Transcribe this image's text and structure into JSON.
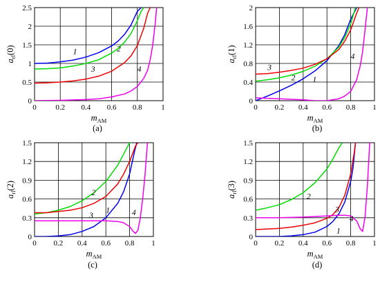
{
  "figure": {
    "colors": {
      "1": "#0000ee",
      "2": "#00dd00",
      "3": "#ee0000",
      "4": "#ee00ee",
      "grid": "#000000"
    }
  },
  "chart_data": [
    {
      "type": "line",
      "panel_label": "(a)",
      "ylabel_main": "a",
      "ylabel_sub": "rl",
      "ylabel_arg": "(0)",
      "xlabel_main": "m",
      "xlabel_sub": "AM",
      "xlim": [
        0,
        1
      ],
      "ylim": [
        0,
        2.5
      ],
      "xticks": [
        0,
        0.2,
        0.4,
        0.6,
        0.8,
        1
      ],
      "xtick_labels": [
        "0",
        "0.2",
        "0.4",
        "0.6",
        "0.8",
        "1"
      ],
      "yticks": [
        0,
        0.5,
        1,
        1.5,
        2,
        2.5
      ],
      "ytick_labels": [
        "0",
        "0.5",
        "1",
        "1.5",
        "2",
        "2.5"
      ],
      "grid": true,
      "series": [
        {
          "label": "1",
          "color": "#0000ee",
          "x": [
            0,
            0.1,
            0.2,
            0.3,
            0.4,
            0.5,
            0.6,
            0.65,
            0.7,
            0.75,
            0.8,
            0.83
          ],
          "y": [
            1.0,
            1.01,
            1.04,
            1.09,
            1.17,
            1.29,
            1.47,
            1.6,
            1.78,
            2.03,
            2.4,
            2.5
          ],
          "ann": {
            "x": 0.3,
            "y": 1.25
          }
        },
        {
          "label": "2",
          "color": "#00dd00",
          "x": [
            0,
            0.1,
            0.2,
            0.3,
            0.4,
            0.5,
            0.6,
            0.65,
            0.7,
            0.75,
            0.8,
            0.83,
            0.85
          ],
          "y": [
            0.85,
            0.86,
            0.88,
            0.93,
            1.0,
            1.1,
            1.28,
            1.4,
            1.57,
            1.8,
            2.15,
            2.4,
            2.5
          ],
          "ann": {
            "x": 0.64,
            "y": 1.32
          }
        },
        {
          "label": "3",
          "color": "#ee0000",
          "x": [
            0,
            0.1,
            0.2,
            0.3,
            0.4,
            0.5,
            0.6,
            0.7,
            0.75,
            0.8,
            0.85,
            0.88,
            0.9
          ],
          "y": [
            0.47,
            0.48,
            0.5,
            0.53,
            0.58,
            0.66,
            0.79,
            1.02,
            1.2,
            1.48,
            1.95,
            2.35,
            2.5
          ],
          "ann": {
            "x": 0.44,
            "y": 0.78
          }
        },
        {
          "label": "4",
          "color": "#ee00ee",
          "x": [
            0,
            0.2,
            0.4,
            0.5,
            0.6,
            0.7,
            0.75,
            0.8,
            0.85,
            0.88,
            0.9,
            0.92,
            0.94,
            0.95
          ],
          "y": [
            0.0,
            0.01,
            0.03,
            0.05,
            0.1,
            0.18,
            0.26,
            0.38,
            0.6,
            0.82,
            1.1,
            1.5,
            2.1,
            2.5
          ],
          "ann": {
            "x": 0.8,
            "y": 0.78
          }
        }
      ]
    },
    {
      "type": "line",
      "panel_label": "(b)",
      "ylabel_main": "a",
      "ylabel_sub": "rl",
      "ylabel_arg": "(1)",
      "xlabel_main": "m",
      "xlabel_sub": "AM",
      "xlim": [
        0,
        1
      ],
      "ylim": [
        0,
        2
      ],
      "xticks": [
        0,
        0.2,
        0.4,
        0.6,
        0.8,
        1
      ],
      "xtick_labels": [
        "0",
        "0.2",
        "0.4",
        "0.6",
        "0.8",
        "1"
      ],
      "yticks": [
        0,
        0.4,
        0.8,
        1.2,
        1.6,
        2
      ],
      "ytick_labels": [
        "0",
        "0.4",
        "0.8",
        "1.2",
        "1.6",
        "2"
      ],
      "grid": true,
      "series": [
        {
          "label": "1",
          "color": "#0000ee",
          "x": [
            0,
            0.1,
            0.2,
            0.3,
            0.4,
            0.5,
            0.6,
            0.7,
            0.75,
            0.8,
            0.85
          ],
          "y": [
            0.0,
            0.1,
            0.21,
            0.33,
            0.47,
            0.64,
            0.86,
            1.18,
            1.42,
            1.75,
            2.0
          ],
          "ann": {
            "x": 0.48,
            "y": 0.4
          }
        },
        {
          "label": "2",
          "color": "#00dd00",
          "x": [
            0,
            0.1,
            0.2,
            0.3,
            0.4,
            0.5,
            0.6,
            0.7,
            0.75,
            0.8,
            0.84
          ],
          "y": [
            0.42,
            0.45,
            0.49,
            0.55,
            0.63,
            0.74,
            0.9,
            1.15,
            1.36,
            1.65,
            2.0
          ],
          "ann": {
            "x": 0.3,
            "y": 0.44
          }
        },
        {
          "label": "3",
          "color": "#ee0000",
          "x": [
            0,
            0.1,
            0.2,
            0.3,
            0.4,
            0.5,
            0.6,
            0.7,
            0.75,
            0.8,
            0.85,
            0.87
          ],
          "y": [
            0.57,
            0.58,
            0.61,
            0.65,
            0.7,
            0.78,
            0.9,
            1.1,
            1.28,
            1.52,
            1.88,
            2.0
          ],
          "ann": {
            "x": 0.1,
            "y": 0.66
          }
        },
        {
          "label": "4",
          "color": "#ee00ee",
          "x": [
            0,
            0.1,
            0.2,
            0.3,
            0.4,
            0.5,
            0.6,
            0.7,
            0.75,
            0.8,
            0.85,
            0.88,
            0.9,
            0.92,
            0.94
          ],
          "y": [
            0.06,
            0.05,
            0.04,
            0.03,
            0.02,
            0.0,
            0.0,
            0.04,
            0.1,
            0.2,
            0.45,
            0.75,
            1.05,
            1.5,
            2.0
          ],
          "ann": {
            "x": 0.8,
            "y": 0.9
          }
        }
      ]
    },
    {
      "type": "line",
      "panel_label": "(c)",
      "ylabel_main": "a",
      "ylabel_sub": "rl",
      "ylabel_arg": "(2)",
      "xlabel_main": "m",
      "xlabel_sub": "AM",
      "xlim": [
        0,
        1
      ],
      "ylim": [
        0,
        1.5
      ],
      "xticks": [
        0,
        0.2,
        0.4,
        0.6,
        0.8,
        1
      ],
      "xtick_labels": [
        "0",
        "0.2",
        "0.4",
        "0.6",
        "0.8",
        "1"
      ],
      "yticks": [
        0,
        0.3,
        0.6,
        0.9,
        1.2,
        1.5
      ],
      "ytick_labels": [
        "0",
        "0.3",
        "0.6",
        "0.9",
        "1.2",
        "1.5"
      ],
      "grid": true,
      "series": [
        {
          "label": "1",
          "color": "#0000ee",
          "x": [
            0,
            0.1,
            0.2,
            0.3,
            0.4,
            0.5,
            0.6,
            0.7,
            0.75,
            0.8,
            0.84,
            0.86
          ],
          "y": [
            0.0,
            0.0,
            0.01,
            0.03,
            0.08,
            0.16,
            0.3,
            0.53,
            0.72,
            1.0,
            1.35,
            1.5
          ],
          "ann": {
            "x": 0.6,
            "y": 0.38
          }
        },
        {
          "label": "2",
          "color": "#00dd00",
          "x": [
            0,
            0.1,
            0.2,
            0.3,
            0.4,
            0.5,
            0.6,
            0.7,
            0.75,
            0.8,
            0.81
          ],
          "y": [
            0.36,
            0.38,
            0.42,
            0.48,
            0.57,
            0.7,
            0.88,
            1.14,
            1.32,
            1.5,
            1.5
          ],
          "ann": {
            "x": 0.48,
            "y": 0.66
          }
        },
        {
          "label": "3",
          "color": "#ee0000",
          "x": [
            0,
            0.1,
            0.2,
            0.3,
            0.4,
            0.5,
            0.6,
            0.7,
            0.75,
            0.8,
            0.85,
            0.87
          ],
          "y": [
            0.38,
            0.38,
            0.4,
            0.42,
            0.46,
            0.53,
            0.64,
            0.84,
            1.0,
            1.2,
            1.45,
            1.5
          ],
          "ann": {
            "x": 0.46,
            "y": 0.3
          }
        },
        {
          "label": "4",
          "color": "#ee00ee",
          "x": [
            0,
            0.2,
            0.4,
            0.5,
            0.6,
            0.7,
            0.75,
            0.8,
            0.83,
            0.85,
            0.87,
            0.89,
            0.91,
            0.93,
            0.95
          ],
          "y": [
            0.25,
            0.25,
            0.25,
            0.25,
            0.25,
            0.24,
            0.22,
            0.16,
            0.08,
            0.05,
            0.1,
            0.3,
            0.6,
            1.0,
            1.5
          ],
          "ann": {
            "x": 0.82,
            "y": 0.34
          }
        }
      ]
    },
    {
      "type": "line",
      "panel_label": "(d)",
      "ylabel_main": "a",
      "ylabel_sub": "rl",
      "ylabel_arg": "(3)",
      "xlabel_main": "m",
      "xlabel_sub": "AM",
      "xlim": [
        0,
        1
      ],
      "ylim": [
        0,
        1.5
      ],
      "xticks": [
        0,
        0.2,
        0.4,
        0.6,
        0.8,
        1
      ],
      "xtick_labels": [
        "0",
        "0.2",
        "0.4",
        "0.6",
        "0.8",
        "1"
      ],
      "yticks": [
        0,
        0.3,
        0.6,
        0.9,
        1.2,
        1.5
      ],
      "ytick_labels": [
        "0",
        "0.3",
        "0.6",
        "0.9",
        "1.2",
        "1.5"
      ],
      "grid": true,
      "series": [
        {
          "label": "1",
          "color": "#0000ee",
          "x": [
            0,
            0.2,
            0.3,
            0.4,
            0.5,
            0.6,
            0.65,
            0.7,
            0.75,
            0.8,
            0.82,
            0.84
          ],
          "y": [
            0.0,
            0.0,
            0.01,
            0.03,
            0.07,
            0.16,
            0.24,
            0.36,
            0.55,
            0.88,
            1.1,
            1.5
          ],
          "ann": {
            "x": 0.68,
            "y": 0.05
          }
        },
        {
          "label": "2",
          "color": "#00dd00",
          "x": [
            0,
            0.1,
            0.2,
            0.3,
            0.4,
            0.5,
            0.6,
            0.65,
            0.7,
            0.73
          ],
          "y": [
            0.42,
            0.46,
            0.51,
            0.59,
            0.7,
            0.86,
            1.08,
            1.24,
            1.42,
            1.5
          ],
          "ann": {
            "x": 0.43,
            "y": 0.6
          }
        },
        {
          "label": "3",
          "color": "#ee0000",
          "x": [
            0,
            0.1,
            0.2,
            0.3,
            0.4,
            0.5,
            0.6,
            0.65,
            0.7,
            0.75,
            0.8,
            0.83,
            0.84
          ],
          "y": [
            0.11,
            0.12,
            0.13,
            0.15,
            0.18,
            0.22,
            0.29,
            0.35,
            0.46,
            0.66,
            1.0,
            1.35,
            1.5
          ],
          "ann": {
            "x": 0.67,
            "y": 0.39
          }
        },
        {
          "label": "4",
          "color": "#ee00ee",
          "x": [
            0,
            0.2,
            0.4,
            0.5,
            0.6,
            0.7,
            0.75,
            0.8,
            0.85,
            0.88,
            0.9,
            0.92,
            0.94,
            0.96
          ],
          "y": [
            0.3,
            0.3,
            0.31,
            0.32,
            0.33,
            0.34,
            0.34,
            0.33,
            0.25,
            0.12,
            0.08,
            0.3,
            0.8,
            1.5
          ],
          "ann": {
            "x": 0.79,
            "y": 0.24
          }
        }
      ]
    }
  ]
}
